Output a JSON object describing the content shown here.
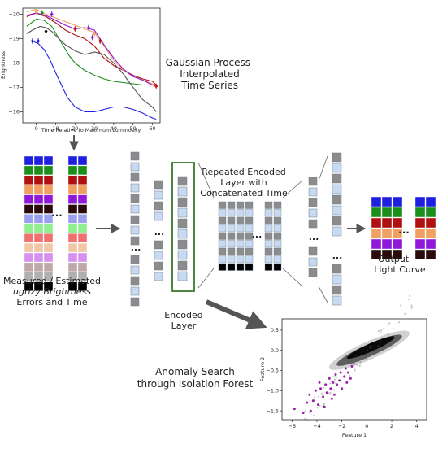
{
  "labels": {
    "gp_title_lines": [
      "Gaussian Process-",
      "Interpolated",
      "Time Series"
    ],
    "measured_lines": [
      "Measured / Estimated",
      "ugrizy Brightness",
      "Errors and Time"
    ],
    "repeated_lines": [
      "Repeated Encoded",
      "Layer with",
      "Concatenated Time"
    ],
    "encoded_lines": [
      "Encoded",
      "Layer"
    ],
    "output_lines": [
      "Output",
      "Light Curve"
    ],
    "anomaly_lines": [
      "Anomaly Search",
      "through Isolation Forest"
    ],
    "ellipsis": "..."
  },
  "colors": {
    "u": "#1f1fe0",
    "g": "#1a8f1a",
    "r": "#b01010",
    "i": "#f0a060",
    "z": "#9018d8",
    "y": "#2a0a0a",
    "err_u": "#9aa0f0",
    "err_g": "#90f090",
    "err_r": "#f07070",
    "err_i": "#f0c8a8",
    "err_z": "#d890f0",
    "err_y": "#c0a8a8",
    "time": "#b0b0b0",
    "black": "#000000",
    "encoded_grey": "#8c8c8c",
    "encoded_light": "#c8daf2",
    "encoded_border": "#3a7a2a"
  },
  "gp_chart": {
    "type": "line",
    "xlabel": "Time Relative to Maximum Luminosity",
    "ylabel": "Brightness",
    "xticks": [
      0,
      10,
      20,
      30,
      40,
      50,
      60
    ],
    "yticks": [
      -20,
      -19,
      -18,
      -17,
      -16
    ],
    "xlim": [
      -7,
      64
    ],
    "ylim": [
      -20.25,
      -15.55
    ],
    "inverted_y": true,
    "series": [
      {
        "color": "#1f1fe0",
        "x": [
          -5,
          -2,
          1,
          4,
          7,
          10,
          13,
          16,
          20,
          25,
          30,
          35,
          40,
          45,
          50,
          55,
          60,
          62
        ],
        "y": [
          -18.9,
          -18.9,
          -18.8,
          -18.55,
          -18.15,
          -17.6,
          -17.1,
          -16.6,
          -16.2,
          -16.0,
          -16.0,
          -16.1,
          -16.2,
          -16.2,
          -16.1,
          -15.95,
          -15.75,
          -15.7
        ]
      },
      {
        "color": "#1a8f1a",
        "x": [
          -5,
          0,
          4,
          8,
          11,
          14,
          17,
          20,
          25,
          30,
          35,
          40,
          45,
          50,
          55,
          60,
          62
        ],
        "y": [
          -19.5,
          -19.8,
          -19.75,
          -19.5,
          -19.1,
          -18.7,
          -18.3,
          -18.0,
          -17.7,
          -17.5,
          -17.35,
          -17.25,
          -17.2,
          -17.15,
          -17.1,
          -17.1,
          -17.1
        ]
      },
      {
        "color": "#b01010",
        "x": [
          -5,
          0,
          5,
          10,
          15,
          20,
          25,
          30,
          35,
          40,
          45,
          50,
          55,
          60,
          62
        ],
        "y": [
          -19.9,
          -20.05,
          -19.9,
          -19.65,
          -19.35,
          -19.15,
          -19.0,
          -18.7,
          -18.2,
          -17.9,
          -17.7,
          -17.5,
          -17.35,
          -17.25,
          -17.1
        ]
      },
      {
        "color": "#f0a060",
        "x": [
          -5,
          0,
          5,
          10,
          15,
          20,
          25,
          30,
          35,
          40,
          45,
          50,
          55,
          60,
          62
        ],
        "y": [
          -20.1,
          -20.2,
          -20.0,
          -19.85,
          -19.7,
          -19.55,
          -19.4,
          -19.25,
          -18.7,
          -18.1,
          -17.7,
          -17.45,
          -17.3,
          -17.15,
          -17.0
        ]
      },
      {
        "color": "#9018d8",
        "x": [
          -5,
          0,
          5,
          10,
          15,
          20,
          25,
          30,
          35,
          40,
          45,
          50,
          55,
          60,
          62
        ],
        "y": [
          -19.95,
          -20.05,
          -19.95,
          -19.75,
          -19.55,
          -19.4,
          -19.45,
          -19.35,
          -18.75,
          -18.2,
          -17.75,
          -17.45,
          -17.3,
          -17.1,
          -17.05
        ]
      },
      {
        "color": "#555555",
        "x": [
          -5,
          -2,
          2,
          5,
          8,
          11,
          15,
          20,
          25,
          30,
          35,
          40,
          45,
          50,
          55,
          60,
          62
        ],
        "y": [
          -19.2,
          -19.35,
          -19.5,
          -19.45,
          -19.3,
          -19.05,
          -18.75,
          -18.5,
          -18.35,
          -18.45,
          -18.35,
          -18.0,
          -17.55,
          -17.0,
          -16.5,
          -16.2,
          -16.0
        ]
      }
    ],
    "markers": [
      {
        "x": -2,
        "y": -18.9,
        "color": "#1f1fe0"
      },
      {
        "x": 1,
        "y": -18.9,
        "color": "#1f1fe0"
      },
      {
        "x": 5,
        "y": -19.3,
        "color": "#111111"
      },
      {
        "x": 3,
        "y": -20.05,
        "color": "#1a8f1a"
      },
      {
        "x": 0,
        "y": -20.1,
        "color": "#f0a060"
      },
      {
        "x": 8,
        "y": -20.0,
        "color": "#9018d8"
      },
      {
        "x": 20,
        "y": -19.4,
        "color": "#b01010"
      },
      {
        "x": 27,
        "y": -19.45,
        "color": "#9018d8"
      },
      {
        "x": 29,
        "y": -19.05,
        "color": "#9018d8"
      },
      {
        "x": 30,
        "y": -19.2,
        "color": "#f0a060"
      },
      {
        "x": 33,
        "y": -18.9,
        "color": "#b01010"
      },
      {
        "x": 62,
        "y": -17.05,
        "color": "#d01010"
      }
    ]
  },
  "scatter_chart": {
    "type": "scatter",
    "xlabel": "Feature 1",
    "ylabel": "Feature 2",
    "xticks": [
      -6,
      -4,
      -2,
      0,
      2,
      4
    ],
    "yticks": [
      -1.5,
      -1.0,
      -0.5,
      0.0,
      0.5
    ],
    "xlim": [
      -6.8,
      4.8
    ],
    "ylim": [
      -1.72,
      0.78
    ],
    "normal_color": "#000000",
    "anomaly_color": "#9b1fa8",
    "anomalies": [
      [
        -5.8,
        -1.45
      ],
      [
        -5.1,
        -1.55
      ],
      [
        -4.8,
        -1.3
      ],
      [
        -4.6,
        -1.1
      ],
      [
        -4.3,
        -1.25
      ],
      [
        -4.1,
        -1.0
      ],
      [
        -3.9,
        -1.35
      ],
      [
        -3.7,
        -0.95
      ],
      [
        -3.5,
        -1.15
      ],
      [
        -3.3,
        -0.85
      ],
      [
        -3.2,
        -1.05
      ],
      [
        -3.0,
        -0.7
      ],
      [
        -2.9,
        -0.95
      ],
      [
        -2.7,
        -0.8
      ],
      [
        -2.6,
        -1.1
      ],
      [
        -2.5,
        -0.6
      ],
      [
        -2.4,
        -0.85
      ],
      [
        -2.2,
        -0.75
      ],
      [
        -2.1,
        -0.55
      ],
      [
        -2.0,
        -0.95
      ],
      [
        -1.8,
        -0.65
      ],
      [
        -1.7,
        -0.45
      ],
      [
        -1.6,
        -0.8
      ],
      [
        -1.5,
        -0.55
      ],
      [
        -1.3,
        -0.7
      ],
      [
        -1.2,
        -0.4
      ],
      [
        -3.4,
        -1.4
      ],
      [
        -4.5,
        -1.5
      ],
      [
        -2.8,
        -1.2
      ],
      [
        -3.8,
        -0.8
      ]
    ]
  }
}
